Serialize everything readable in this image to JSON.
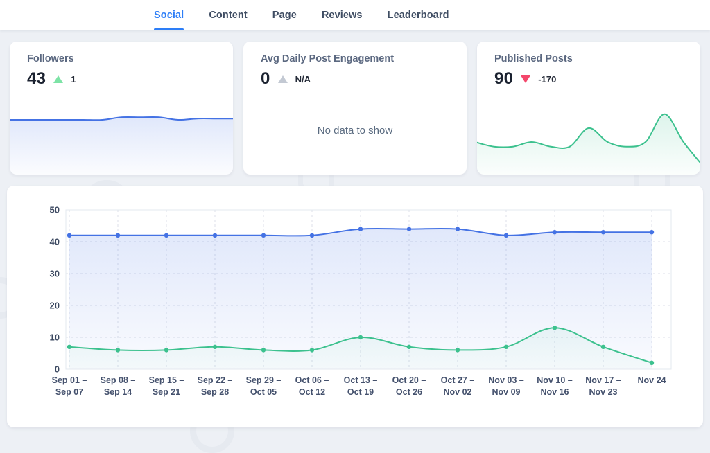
{
  "nav": {
    "tabs": [
      {
        "label": "Social",
        "active": true
      },
      {
        "label": "Content",
        "active": false
      },
      {
        "label": "Page",
        "active": false
      },
      {
        "label": "Reviews",
        "active": false
      },
      {
        "label": "Leaderboard",
        "active": false
      }
    ]
  },
  "theme": {
    "accent_blue": "#2d7ef7",
    "line_blue": "#4472e4",
    "line_green": "#3cc18e",
    "delta_up_green": "#7de3a6",
    "delta_neutral_gray": "#c3c9d3",
    "delta_down_red": "#f4476b",
    "background": "#edf0f5"
  },
  "cards": {
    "followers": {
      "title": "Followers",
      "value": "43",
      "delta": "1",
      "delta_direction": "up",
      "delta_color": "#7de3a6",
      "line_color": "#4472e4"
    },
    "engagement": {
      "title": "Avg Daily Post Engagement",
      "value": "0",
      "delta": "N/A",
      "delta_direction": "up",
      "delta_color": "#c3c9d3",
      "empty_message": "No data to show"
    },
    "posts": {
      "title": "Published Posts",
      "value": "90",
      "delta": "-170",
      "delta_direction": "down",
      "delta_color": "#f4476b",
      "line_color": "#3cc18e"
    }
  },
  "chart_data": [
    {
      "id": "main-chart",
      "type": "line",
      "title": "",
      "xlabel": "",
      "ylabel": "",
      "ylim": [
        0,
        50
      ],
      "yticks": [
        0,
        10,
        20,
        30,
        40,
        50
      ],
      "grid": true,
      "legend": "none",
      "categories": [
        [
          "Sep 01 –",
          "Sep 07"
        ],
        [
          "Sep 08 –",
          "Sep 14"
        ],
        [
          "Sep 15 –",
          "Sep 21"
        ],
        [
          "Sep 22 –",
          "Sep 28"
        ],
        [
          "Sep 29 –",
          "Oct 05"
        ],
        [
          "Oct 06 –",
          "Oct 12"
        ],
        [
          "Oct 13 –",
          "Oct 19"
        ],
        [
          "Oct 20 –",
          "Oct 26"
        ],
        [
          "Oct 27 –",
          "Nov 02"
        ],
        [
          "Nov 03 –",
          "Nov 09"
        ],
        [
          "Nov 10 –",
          "Nov 16"
        ],
        [
          "Nov 17 –",
          "Nov 23"
        ],
        [
          "Nov 24"
        ]
      ],
      "series": [
        {
          "name": "Followers",
          "color": "#4472e4",
          "values": [
            42,
            42,
            42,
            42,
            42,
            42,
            44,
            44,
            44,
            42,
            43,
            43,
            43
          ]
        },
        {
          "name": "Published Posts",
          "color": "#3cc18e",
          "values": [
            7,
            6,
            6,
            7,
            6,
            6,
            10,
            7,
            6,
            7,
            13,
            7,
            2
          ]
        }
      ]
    },
    {
      "id": "spark-followers",
      "type": "area",
      "color": "#4472e4",
      "ylim": [
        0,
        50
      ],
      "values": [
        42,
        42,
        42,
        42,
        42,
        42,
        44,
        44,
        44,
        42,
        43,
        43,
        43
      ]
    },
    {
      "id": "spark-posts",
      "type": "area",
      "color": "#3cc18e",
      "ylim": [
        0,
        14
      ],
      "values": [
        7,
        6,
        6,
        7,
        6,
        6,
        10,
        7,
        6,
        7,
        13,
        7,
        2
      ]
    }
  ]
}
